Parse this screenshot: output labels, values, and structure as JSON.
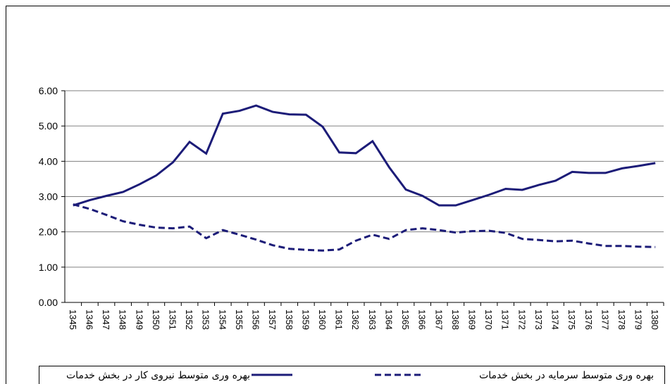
{
  "chart_data": {
    "type": "line",
    "categories": [
      "1345",
      "1346",
      "1347",
      "1348",
      "1349",
      "1350",
      "1351",
      "1352",
      "1353",
      "1354",
      "1355",
      "1356",
      "1357",
      "1358",
      "1359",
      "1360",
      "1361",
      "1362",
      "1363",
      "1364",
      "1365",
      "1366",
      "1367",
      "1368",
      "1369",
      "1370",
      "1371",
      "1372",
      "1373",
      "1374",
      "1375",
      "1376",
      "1377",
      "1378",
      "1379",
      "1380"
    ],
    "series": [
      {
        "name": "بهره وری متوسط نیروی کار در بخش خدمات",
        "color": "#1c1c78",
        "style": "solid",
        "values": [
          2.75,
          2.9,
          3.02,
          3.13,
          3.35,
          3.6,
          3.97,
          4.55,
          4.22,
          5.35,
          5.43,
          5.58,
          5.4,
          5.33,
          5.32,
          4.98,
          4.25,
          4.23,
          4.57,
          3.83,
          3.2,
          3.02,
          2.75,
          2.75,
          2.9,
          3.05,
          3.22,
          3.19,
          3.33,
          3.45,
          3.7,
          3.67,
          3.67,
          3.8,
          3.87,
          3.95
        ]
      },
      {
        "name": "بهره وری متوسط سرمایه در بخش خدمات",
        "color": "#1c1c78",
        "style": "dashed",
        "values": [
          2.78,
          2.65,
          2.48,
          2.3,
          2.2,
          2.12,
          2.1,
          2.15,
          1.82,
          2.05,
          1.92,
          1.78,
          1.62,
          1.52,
          1.49,
          1.47,
          1.5,
          1.75,
          1.92,
          1.8,
          2.05,
          2.1,
          2.05,
          1.98,
          2.02,
          2.03,
          1.97,
          1.8,
          1.77,
          1.73,
          1.75,
          1.67,
          1.6,
          1.6,
          1.58,
          1.57
        ]
      }
    ],
    "ylim": [
      0,
      6
    ],
    "yticks": [
      {
        "value": 0,
        "label": "0.00"
      },
      {
        "value": 1,
        "label": "1.00"
      },
      {
        "value": 2,
        "label": "2.00"
      },
      {
        "value": 3,
        "label": "3.00"
      },
      {
        "value": 4,
        "label": "4.00"
      },
      {
        "value": 5,
        "label": "5.00"
      },
      {
        "value": 6,
        "label": "6.00"
      }
    ],
    "grid": true
  }
}
